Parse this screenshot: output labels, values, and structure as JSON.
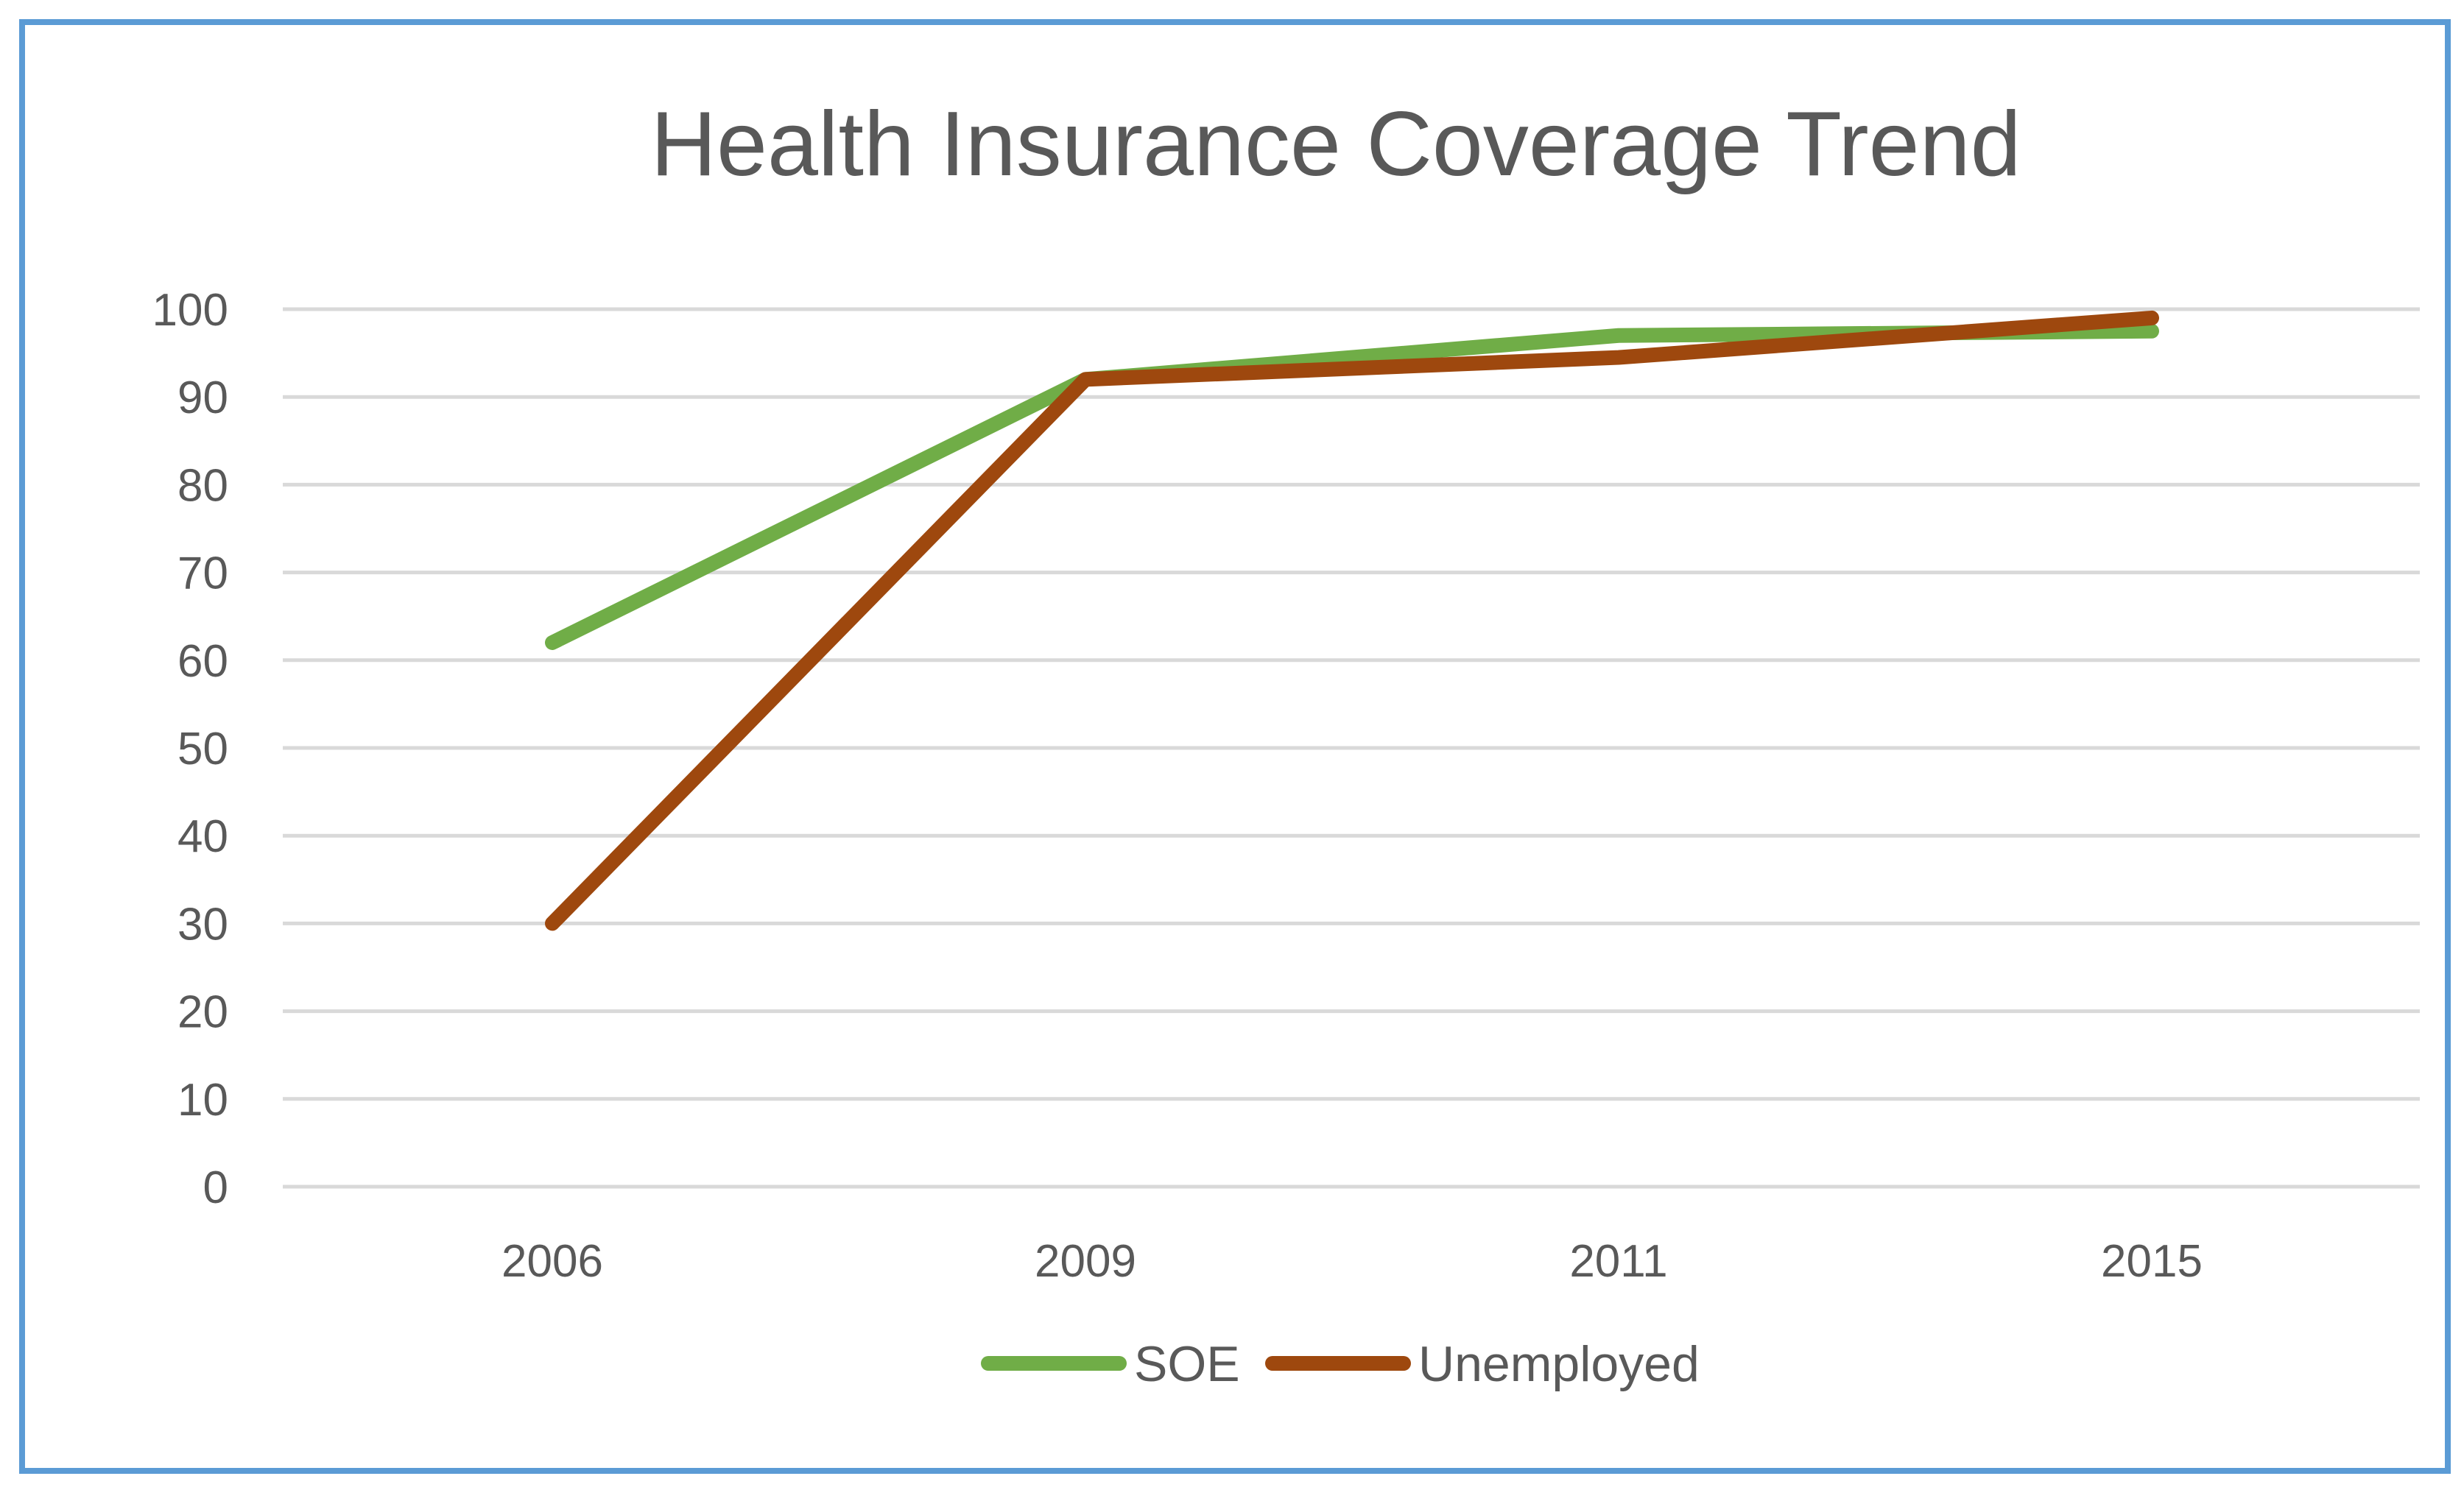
{
  "chart_data": {
    "type": "line",
    "title": "Health Insurance Coverage Trend",
    "xlabel": "",
    "ylabel": "",
    "categories": [
      "2006",
      "2009",
      "2011",
      "2015"
    ],
    "ylim": [
      0,
      100
    ],
    "yticks": [
      "0",
      "10",
      "20",
      "30",
      "40",
      "50",
      "60",
      "70",
      "80",
      "90",
      "100"
    ],
    "grid": true,
    "legend_position": "bottom",
    "series": [
      {
        "name": "SOE",
        "values": [
          62,
          92,
          97,
          97.5
        ],
        "color": "#70ad47"
      },
      {
        "name": "Unemployed",
        "values": [
          30,
          92,
          94.5,
          99
        ],
        "color": "#9e480e"
      }
    ]
  }
}
